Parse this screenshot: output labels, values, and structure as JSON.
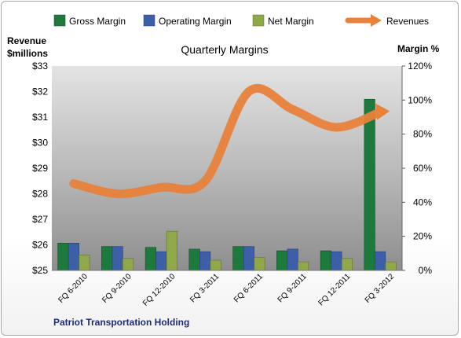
{
  "chart_data": {
    "type": "bar",
    "title": "Quarterly Margins",
    "left_axis_label_line1": "Revenue",
    "left_axis_label_line2": "$millions",
    "right_axis_label": "Margin %",
    "footer": "Patriot Transportation  Holding",
    "categories": [
      "FQ 6-2010",
      "FQ 9-2010",
      "FQ 12-2010",
      "FQ 3-2011",
      "FQ 6-2011",
      "FQ 9-2011",
      "FQ 12-2011",
      "FQ 3-2012"
    ],
    "left_axis": {
      "min": 25,
      "max": 33,
      "ticks": [
        "$25",
        "$26",
        "$27",
        "$28",
        "$29",
        "$30",
        "$31",
        "$32",
        "$33"
      ]
    },
    "right_axis": {
      "min": 0,
      "max": 120,
      "ticks": [
        "0%",
        "20%",
        "40%",
        "60%",
        "80%",
        "100%",
        "120%"
      ]
    },
    "series": [
      {
        "name": "Gross Margin",
        "axis": "right",
        "color": "#1e7a3c",
        "values": [
          16,
          14,
          13.5,
          12.5,
          14,
          11.5,
          11.5,
          100.5
        ]
      },
      {
        "name": "Operating Margin",
        "axis": "right",
        "color": "#3d5fa8",
        "values": [
          16,
          14,
          11,
          11,
          14,
          12.5,
          11,
          11
        ]
      },
      {
        "name": "Net Margin",
        "axis": "right",
        "color": "#8fa84a",
        "values": [
          9,
          7,
          23,
          6,
          7.5,
          5,
          7,
          5
        ]
      },
      {
        "name": "Revenues",
        "axis": "left",
        "type": "line",
        "color": "#e8823a",
        "values": [
          28.4,
          28.0,
          28.25,
          28.5,
          32.0,
          31.3,
          30.6,
          31.2
        ]
      }
    ],
    "grid": false,
    "legend_position": "top"
  }
}
